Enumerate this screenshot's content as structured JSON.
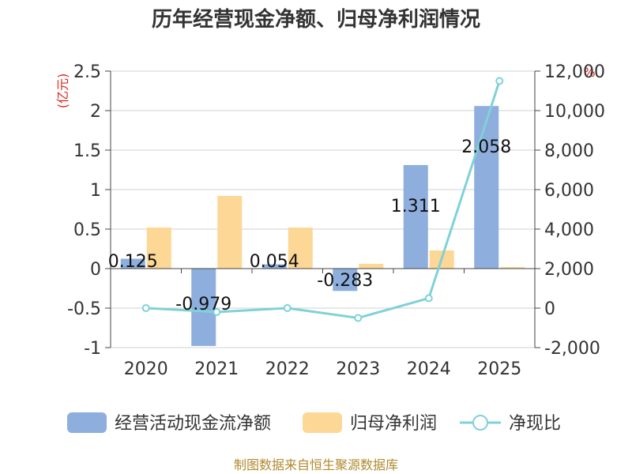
{
  "chart_data": {
    "type": "bar+line",
    "title": "历年经营现金净额、归母净利润情况",
    "categories": [
      "2020",
      "2021",
      "2022",
      "2023",
      "2024",
      "2025"
    ],
    "series": [
      {
        "name": "经营活动现金流净额",
        "type": "bar",
        "axis": "left",
        "color": "#8eaedd",
        "values": [
          0.125,
          -0.979,
          0.054,
          -0.283,
          1.311,
          2.058
        ],
        "labels": [
          "0.125",
          "-0.979",
          "0.054",
          "-0.283",
          "1.311",
          "2.058"
        ]
      },
      {
        "name": "归母净利润",
        "type": "bar",
        "axis": "left",
        "color": "#fdd795",
        "values": [
          0.52,
          0.92,
          0.52,
          0.06,
          0.23,
          0.02
        ]
      },
      {
        "name": "净现比",
        "type": "line",
        "axis": "right",
        "color": "#7fd2d8",
        "values": [
          0,
          -200,
          0,
          -500,
          500,
          11500
        ]
      }
    ],
    "left_axis": {
      "unit": "(亿元)",
      "min": -1,
      "max": 2.5,
      "ticks": [
        -1,
        -0.5,
        0,
        0.5,
        1,
        1.5,
        2,
        2.5
      ],
      "tick_labels": [
        "-1",
        "-0.5",
        "0",
        "0.5",
        "1",
        "1.5",
        "2",
        "2.5"
      ]
    },
    "right_axis": {
      "unit": "%",
      "min": -2000,
      "max": 12000,
      "ticks": [
        -2000,
        0,
        2000,
        4000,
        6000,
        8000,
        10000,
        12000
      ],
      "tick_labels": [
        "-2,000",
        "0",
        "2,000",
        "4,000",
        "6,000",
        "8,000",
        "10,000",
        "12,000"
      ]
    },
    "source": "制图数据来自恒生聚源数据库"
  }
}
